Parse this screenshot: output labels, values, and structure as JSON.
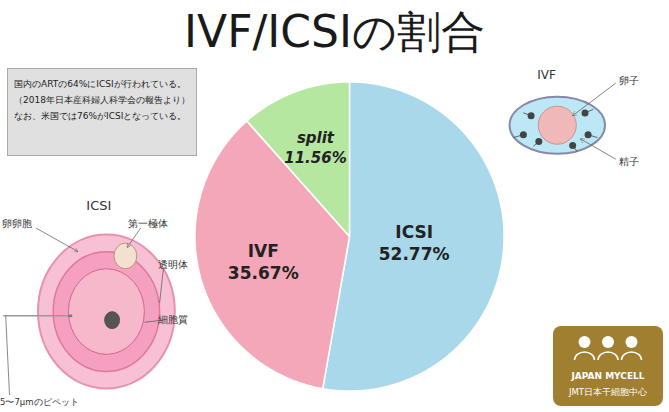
{
  "chart_data": {
    "type": "pie",
    "title": "IVF/ICSIの割合",
    "categories": [
      "ICSI",
      "IVF",
      "split"
    ],
    "values": [
      52.77,
      35.67,
      11.56
    ],
    "value_labels": [
      "52.77%",
      "35.67%",
      "11.56%"
    ],
    "colors": [
      "#a8d8ea",
      "#f4a7b9",
      "#b5e7a0"
    ],
    "data_labels": true,
    "legend": false,
    "tick_labels": false,
    "annotations": [
      "国内のARTの64%にICSIが行われている。",
      "（2018年日本産科婦人科学会の報告より）",
      "なお、米国では76%がICSIとなっている。",
      "IVF",
      "卵子",
      "精子",
      "ICSI",
      "卵卵胞",
      "第一極体",
      "透明体",
      "細胞質",
      "5〜7μmのピペット",
      "JAPAN MYCELL",
      "JMT日本干細胞中心"
    ]
  }
}
